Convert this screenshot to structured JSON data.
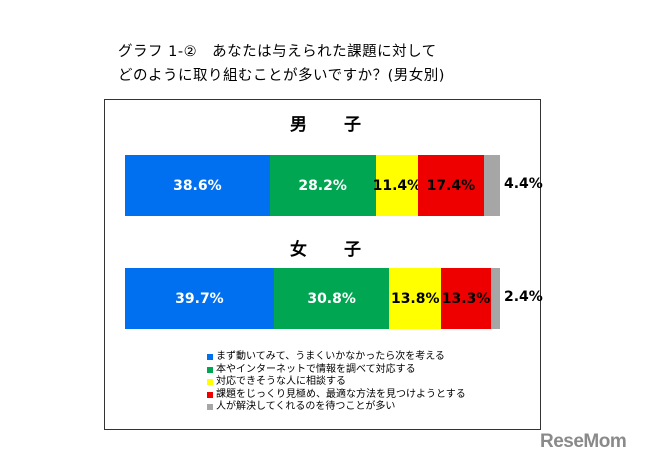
{
  "title_line1": "グラフ 1-②　あなたは与えられた課題に対して",
  "title_line2": "どのように取り組むことが多いですか？(男女別)",
  "logo_text": "ReseMom",
  "chart_data": {
    "type": "bar",
    "orientation": "horizontal-stacked",
    "categories": [
      "男　子",
      "女　子"
    ],
    "series": [
      {
        "name": "まず動いてみて、うまくいかなかったら次を考える",
        "color": "#0070f0",
        "values": [
          38.6,
          39.7
        ],
        "labels": [
          "38.6%",
          "39.7%"
        ]
      },
      {
        "name": "本やインターネットで情報を調べて対応する",
        "color": "#00a651",
        "values": [
          28.2,
          30.8
        ],
        "labels": [
          "28.2%",
          "30.8%"
        ]
      },
      {
        "name": "対応できそうな人に相談する",
        "color": "#ffff00",
        "values": [
          11.4,
          13.8
        ],
        "labels": [
          "11.4%",
          "13.8%"
        ]
      },
      {
        "name": "課題をじっくり見極め、最適な方法を見つけようとする",
        "color": "#ee0000",
        "values": [
          17.4,
          13.3
        ],
        "labels": [
          "17.4%",
          "13.3%"
        ]
      },
      {
        "name": "人が解決してくれるのを待つことが多い",
        "color": "#a6a6a6",
        "values": [
          4.4,
          2.4
        ],
        "labels": [
          "4.4%",
          "2.4%"
        ]
      }
    ],
    "legend_position": "bottom",
    "grid": false
  }
}
